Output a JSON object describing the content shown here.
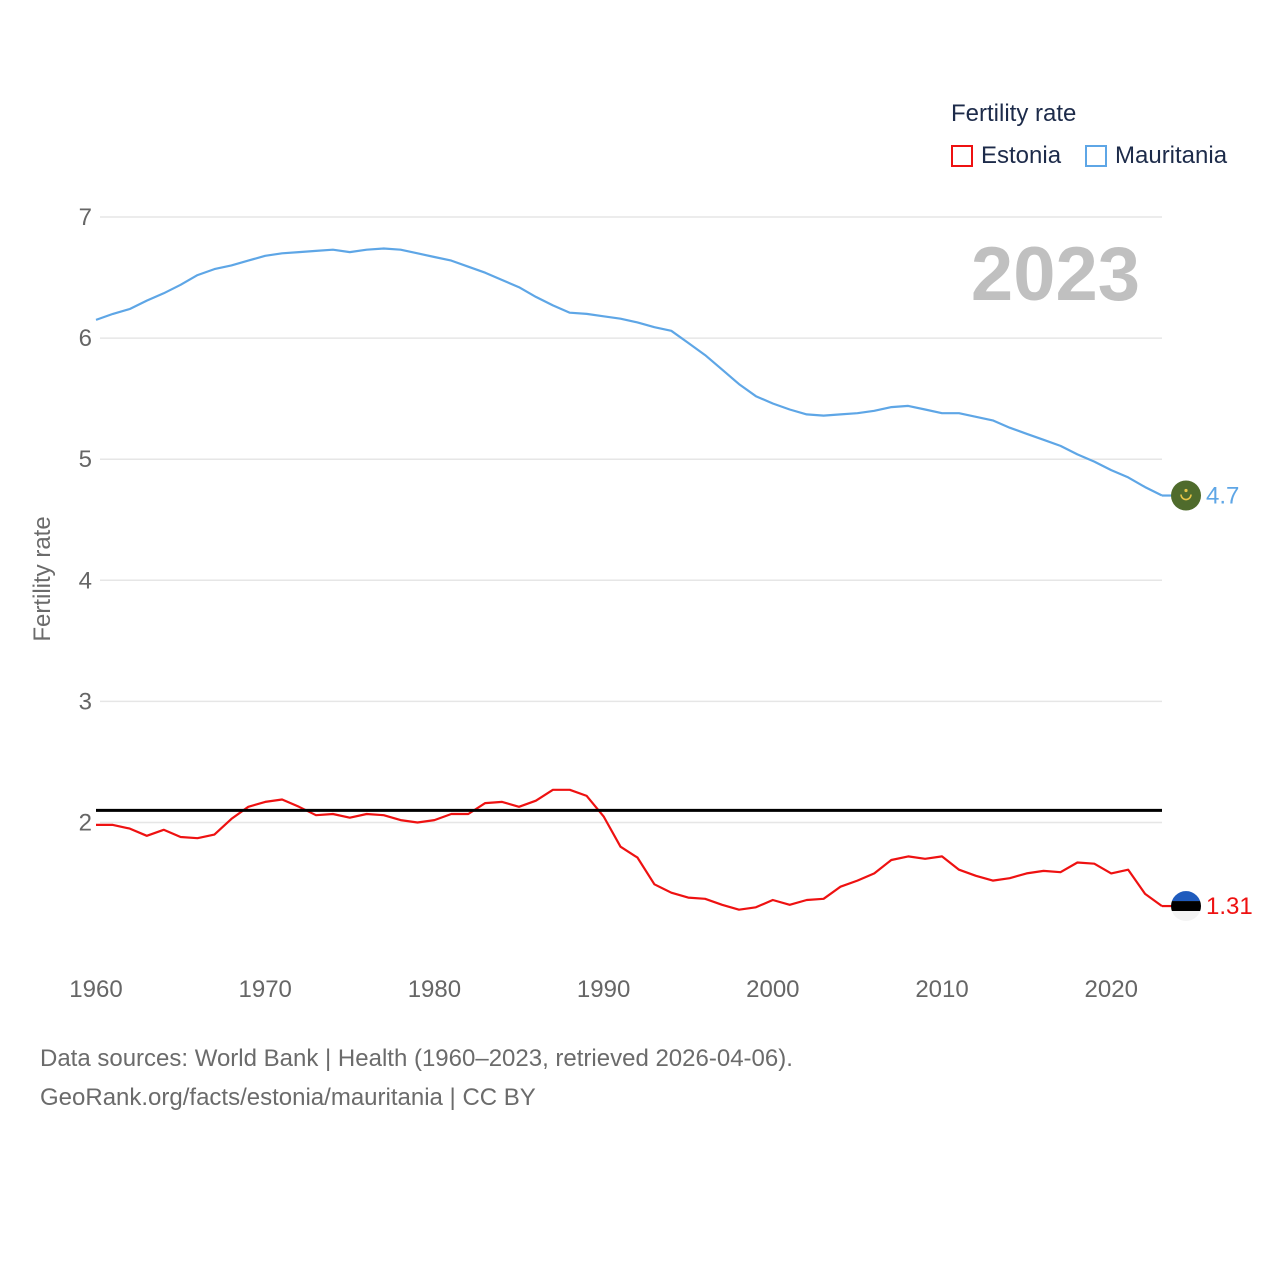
{
  "legend": {
    "title": "Fertility rate",
    "items": [
      {
        "label": "Estonia",
        "color": "#ee1111"
      },
      {
        "label": "Mauritania",
        "color": "#5ea6e6"
      }
    ]
  },
  "year_label": "2023",
  "footer": {
    "line1": "Data sources: World Bank | Health (1960–2023, retrieved 2026-04-06).",
    "line2": "GeoRank.org/facts/estonia/mauritania | CC BY"
  },
  "chart_data": {
    "type": "line",
    "ylabel": "Fertility rate",
    "xlabel": "",
    "xlim": [
      1960,
      2023
    ],
    "ylim": [
      1,
      7
    ],
    "x_ticks": [
      "1960",
      "1970",
      "1980",
      "1990",
      "2000",
      "2010",
      "2020"
    ],
    "y_ticks": [
      "2",
      "3",
      "4",
      "5",
      "6",
      "7"
    ],
    "reference_line": {
      "value": 2.1,
      "color": "#000000"
    },
    "x": [
      1960,
      1961,
      1962,
      1963,
      1964,
      1965,
      1966,
      1967,
      1968,
      1969,
      1970,
      1971,
      1972,
      1973,
      1974,
      1975,
      1976,
      1977,
      1978,
      1979,
      1980,
      1981,
      1982,
      1983,
      1984,
      1985,
      1986,
      1987,
      1988,
      1989,
      1990,
      1991,
      1992,
      1993,
      1994,
      1995,
      1996,
      1997,
      1998,
      1999,
      2000,
      2001,
      2002,
      2003,
      2004,
      2005,
      2006,
      2007,
      2008,
      2009,
      2010,
      2011,
      2012,
      2013,
      2014,
      2015,
      2016,
      2017,
      2018,
      2019,
      2020,
      2021,
      2022,
      2023
    ],
    "series": [
      {
        "name": "Estonia",
        "color": "#ee1111",
        "end_label": "1.31",
        "flag": "estonia-flag",
        "values": [
          1.98,
          1.98,
          1.95,
          1.89,
          1.94,
          1.88,
          1.87,
          1.9,
          2.03,
          2.13,
          2.17,
          2.19,
          2.13,
          2.06,
          2.07,
          2.04,
          2.07,
          2.06,
          2.02,
          2.0,
          2.02,
          2.07,
          2.07,
          2.16,
          2.17,
          2.13,
          2.18,
          2.27,
          2.27,
          2.22,
          2.05,
          1.8,
          1.71,
          1.49,
          1.42,
          1.38,
          1.37,
          1.32,
          1.28,
          1.3,
          1.36,
          1.32,
          1.36,
          1.37,
          1.47,
          1.52,
          1.58,
          1.69,
          1.72,
          1.7,
          1.72,
          1.61,
          1.56,
          1.52,
          1.54,
          1.58,
          1.6,
          1.59,
          1.67,
          1.66,
          1.58,
          1.61,
          1.41,
          1.31
        ]
      },
      {
        "name": "Mauritania",
        "color": "#5ea6e6",
        "end_label": "4.7",
        "flag": "mauritania-flag",
        "values": [
          6.15,
          6.2,
          6.24,
          6.31,
          6.37,
          6.44,
          6.52,
          6.57,
          6.6,
          6.64,
          6.68,
          6.7,
          6.71,
          6.72,
          6.73,
          6.71,
          6.73,
          6.74,
          6.73,
          6.7,
          6.67,
          6.64,
          6.59,
          6.54,
          6.48,
          6.42,
          6.34,
          6.27,
          6.21,
          6.2,
          6.18,
          6.16,
          6.13,
          6.09,
          6.06,
          5.96,
          5.86,
          5.74,
          5.62,
          5.52,
          5.46,
          5.41,
          5.37,
          5.36,
          5.37,
          5.38,
          5.4,
          5.43,
          5.44,
          5.41,
          5.38,
          5.38,
          5.35,
          5.32,
          5.26,
          5.21,
          5.16,
          5.11,
          5.04,
          4.98,
          4.91,
          4.85,
          4.77,
          4.7
        ]
      }
    ]
  }
}
